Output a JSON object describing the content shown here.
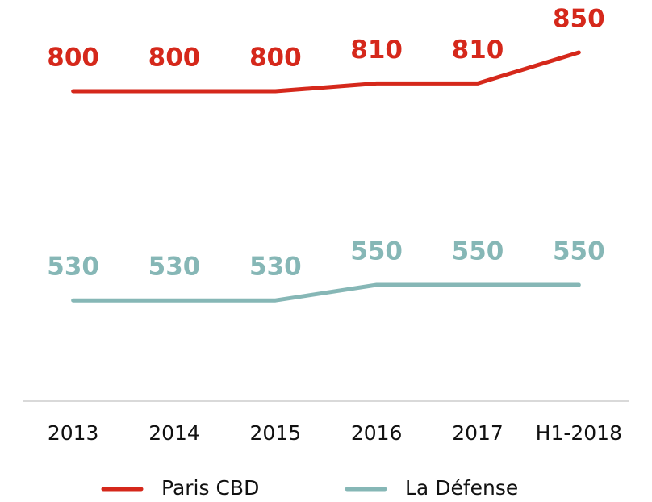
{
  "chart_data": {
    "type": "line",
    "categories": [
      "2013",
      "2014",
      "2015",
      "2016",
      "2017",
      "H1-2018"
    ],
    "series": [
      {
        "name": "Paris CBD",
        "color": "#d5281b",
        "values": [
          800,
          800,
          800,
          810,
          810,
          850
        ]
      },
      {
        "name": "La Défense",
        "color": "#86b7b6",
        "values": [
          530,
          530,
          530,
          550,
          550,
          550
        ]
      }
    ],
    "ylim": [
      400,
      900
    ]
  }
}
